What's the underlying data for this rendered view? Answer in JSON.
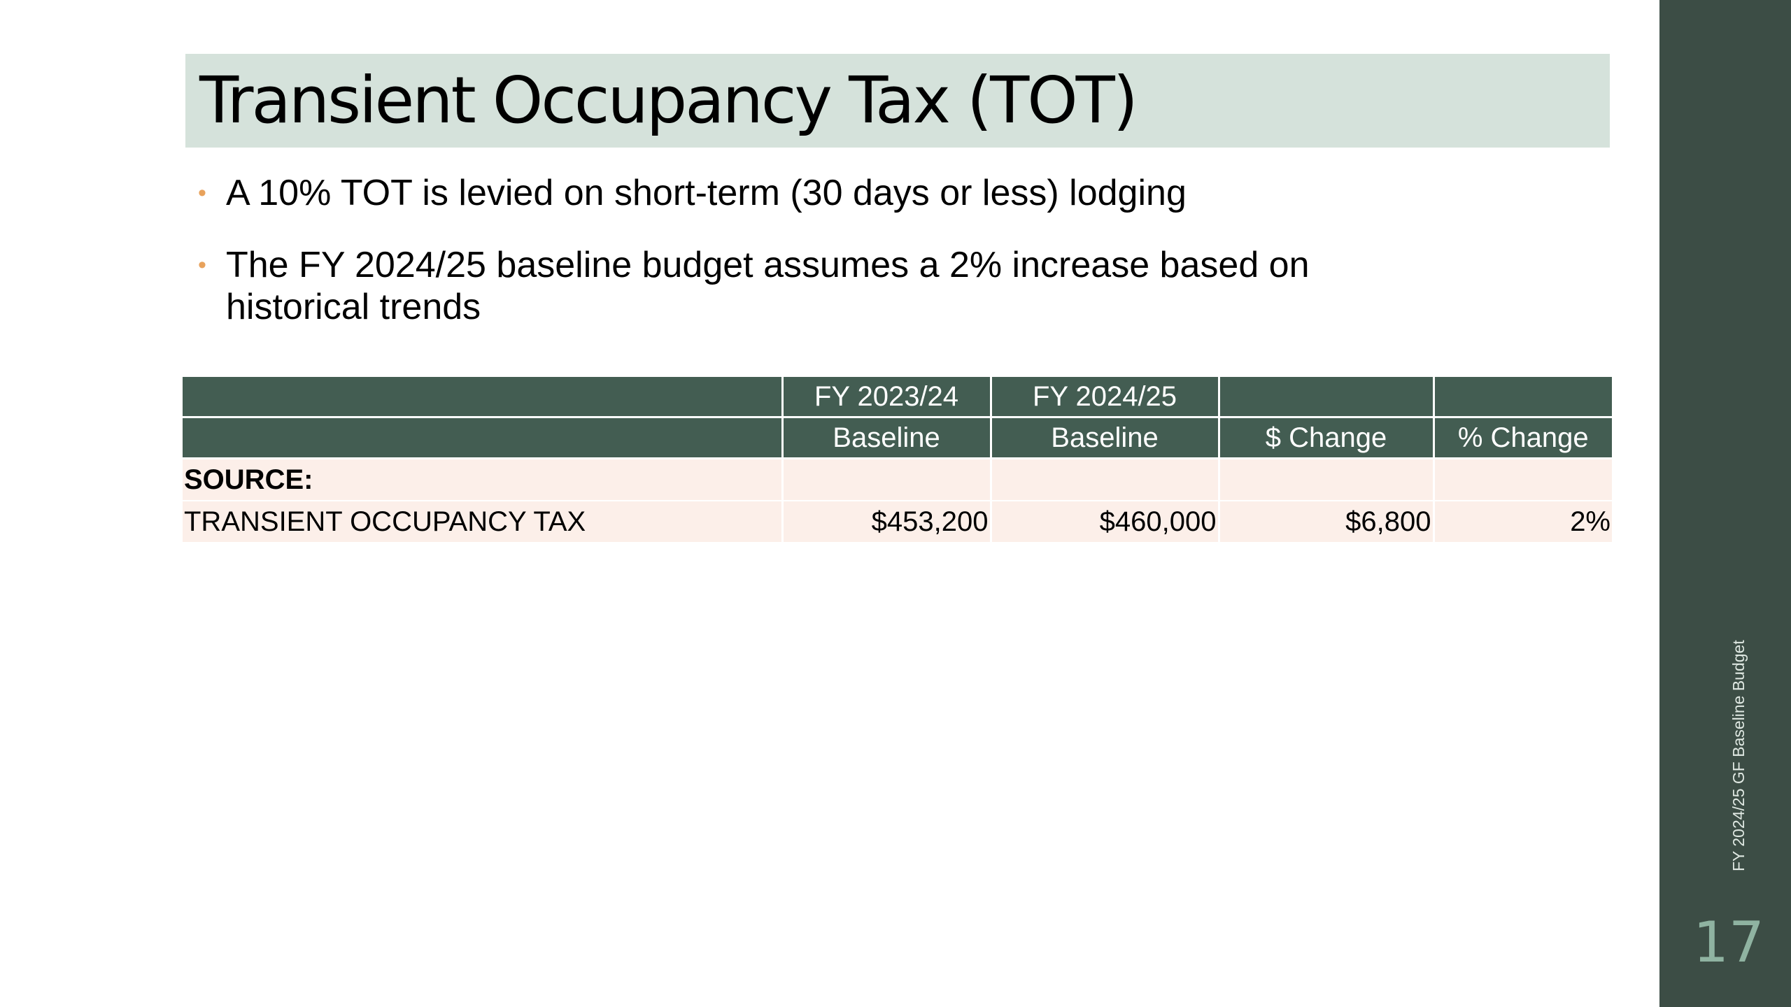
{
  "slide": {
    "title": "Transient Occupancy Tax (TOT)",
    "bullets": [
      "A 10% TOT is levied on short-term (30 days or less) lodging",
      "The FY 2024/25 baseline budget assumes a 2% increase based on historical trends"
    ],
    "bullet_marker": "•",
    "footer_label": "FY 2024/25 GF Baseline Budget",
    "slide_number": "17"
  },
  "table": {
    "header_row_1": [
      "",
      "FY 2023/24",
      "FY 2024/25",
      "",
      ""
    ],
    "header_row_2": [
      "",
      "Baseline",
      "Baseline",
      "$ Change",
      "% Change"
    ],
    "section_label": "SOURCE:",
    "rows": [
      {
        "label": "TRANSIENT OCCUPANCY TAX",
        "fy2023_24": "$453,200",
        "fy2024_25": "$460,000",
        "dollar_change": "$6,800",
        "pct_change": "2%"
      }
    ]
  },
  "colors": {
    "title_band": "#d5e2db",
    "table_header": "#435d52",
    "table_body": "#fcefe9",
    "sidebar": "#3c4d45",
    "bullet_marker": "#e8a25c",
    "slide_number": "#8fb3a1"
  }
}
